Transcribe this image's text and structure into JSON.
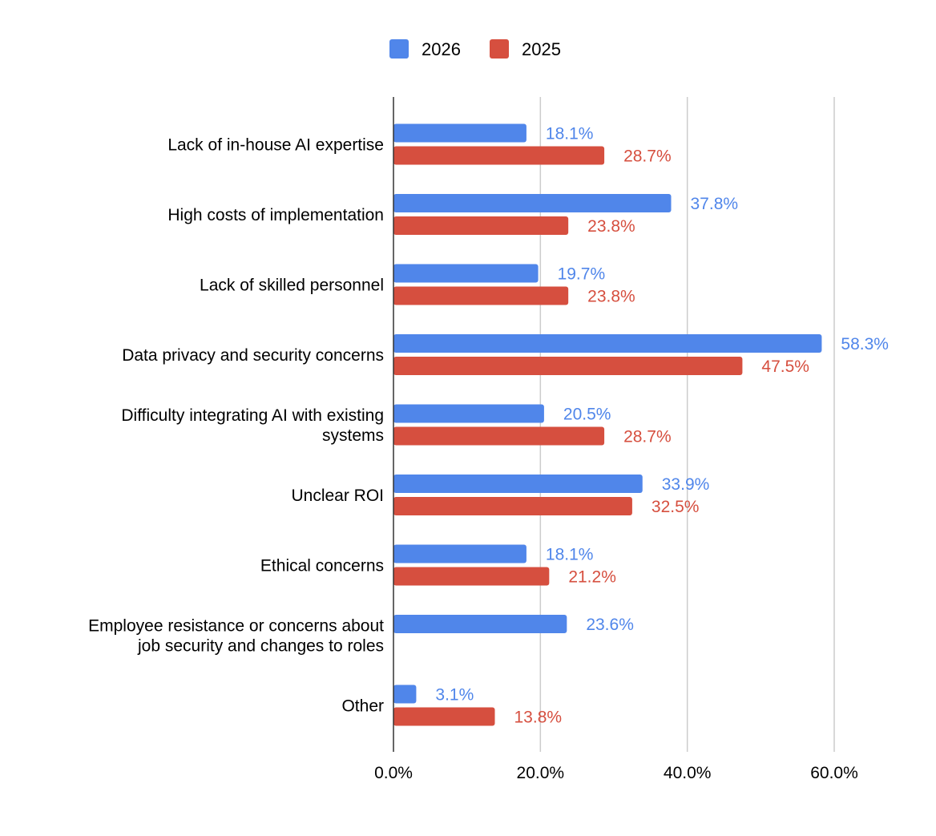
{
  "chart_data": {
    "type": "bar",
    "orientation": "horizontal",
    "categories": [
      [
        "Lack of in-house AI expertise"
      ],
      [
        "High costs of implementation"
      ],
      [
        "Lack of skilled personnel"
      ],
      [
        "Data privacy and security concerns"
      ],
      [
        "Difficulty integrating AI with existing",
        "systems"
      ],
      [
        "Unclear ROI"
      ],
      [
        "Ethical concerns"
      ],
      [
        "Employee resistance or concerns about",
        "job security and changes to roles"
      ],
      [
        "Other"
      ]
    ],
    "series": [
      {
        "name": "2026",
        "color": "#5086ea",
        "values": [
          18.1,
          37.8,
          19.7,
          58.3,
          20.5,
          33.9,
          18.1,
          23.6,
          3.1
        ],
        "labels": [
          "18.1%",
          "37.8%",
          "19.7%",
          "58.3%",
          "20.5%",
          "33.9%",
          "18.1%",
          "23.6%",
          "3.1%"
        ]
      },
      {
        "name": "2025",
        "color": "#d64f3f",
        "values": [
          28.7,
          23.8,
          23.8,
          47.5,
          28.7,
          32.5,
          21.2,
          null,
          13.8
        ],
        "labels": [
          "28.7%",
          "23.8%",
          "23.8%",
          "47.5%",
          "28.7%",
          "32.5%",
          "21.2%",
          null,
          "13.8%"
        ]
      }
    ],
    "xlim": [
      0,
      60
    ],
    "x_ticks": [
      0,
      20,
      40,
      60
    ],
    "x_tick_labels": [
      "0.0%",
      "20.0%",
      "40.0%",
      "60.0%"
    ],
    "grid": "vertical",
    "legend_position": "top-center",
    "title": "",
    "xlabel": "",
    "ylabel": ""
  }
}
